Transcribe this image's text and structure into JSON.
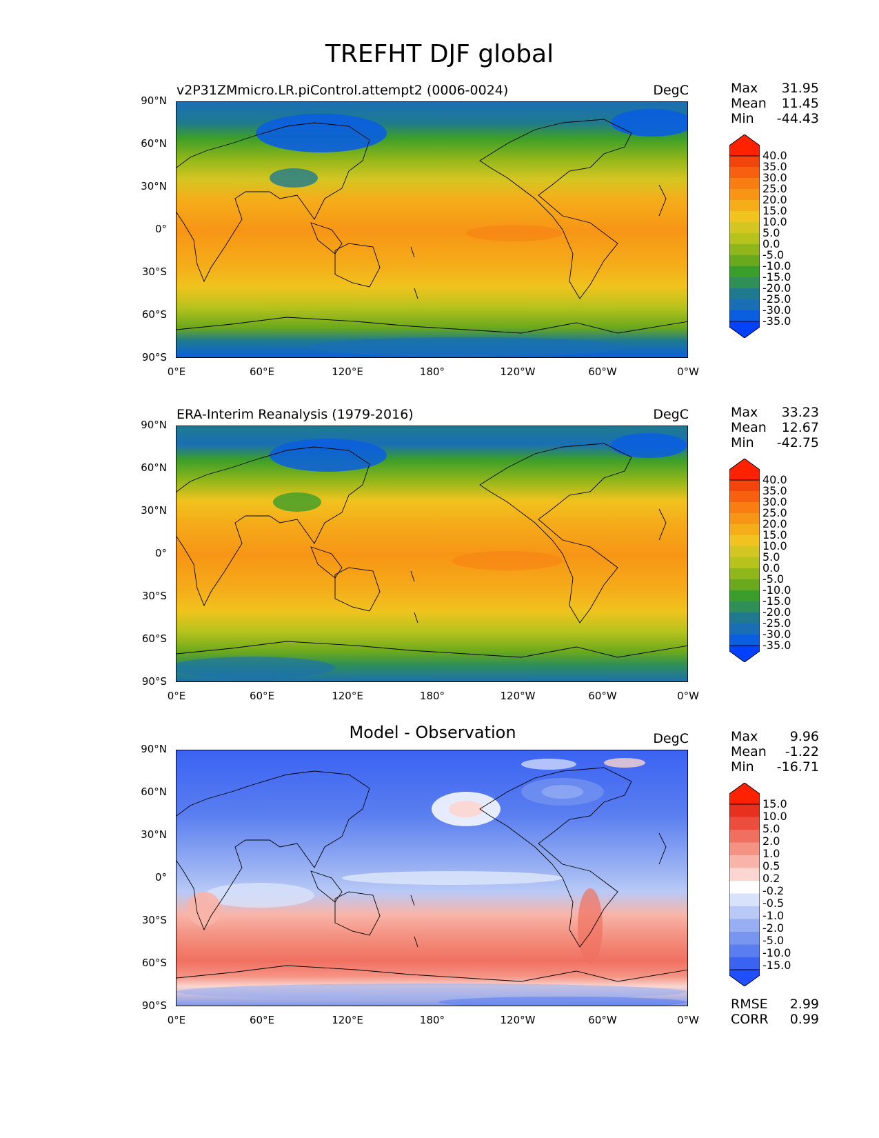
{
  "figure": {
    "title": "TREFHT DJF global"
  },
  "lat_labels": [
    "90°N",
    "60°N",
    "30°N",
    "0°",
    "30°S",
    "60°S",
    "90°S"
  ],
  "lon_labels": [
    "0°E",
    "60°E",
    "120°E",
    "180°",
    "120°W",
    "60°W",
    "0°W"
  ],
  "panels": [
    {
      "id": "test",
      "title": "v2P31ZMmicro.LR.piControl.attempt2 (0006-0024)",
      "units": "DegC",
      "stats": {
        "max_label": "Max",
        "max": "31.95",
        "mean_label": "Mean",
        "mean": "11.45",
        "min_label": "Min",
        "min": "-44.43"
      },
      "colorbar_labels": [
        "40.0",
        "35.0",
        "30.0",
        "25.0",
        "20.0",
        "15.0",
        "10.0",
        "5.0",
        "0.0",
        "-5.0",
        "-10.0",
        "-15.0",
        "-20.0",
        "-25.0",
        "-30.0",
        "-35.0"
      ]
    },
    {
      "id": "reference",
      "title": "ERA-Interim Reanalysis (1979-2016)",
      "units": "DegC",
      "stats": {
        "max_label": "Max",
        "max": "33.23",
        "mean_label": "Mean",
        "mean": "12.67",
        "min_label": "Min",
        "min": "-42.75"
      },
      "colorbar_labels": [
        "40.0",
        "35.0",
        "30.0",
        "25.0",
        "20.0",
        "15.0",
        "10.0",
        "5.0",
        "0.0",
        "-5.0",
        "-10.0",
        "-15.0",
        "-20.0",
        "-25.0",
        "-30.0",
        "-35.0"
      ]
    },
    {
      "id": "difference",
      "title": "Model - Observation",
      "units": "DegC",
      "stats": {
        "max_label": "Max",
        "max": "9.96",
        "mean_label": "Mean",
        "mean": "-1.22",
        "min_label": "Min",
        "min": "-16.71"
      },
      "colorbar_labels": [
        "15.0",
        "10.0",
        "5.0",
        "2.0",
        "1.0",
        "0.5",
        "0.2",
        "-0.2",
        "-0.5",
        "-1.0",
        "-2.0",
        "-5.0",
        "-10.0",
        "-15.0"
      ],
      "metrics": {
        "rmse_label": "RMSE",
        "rmse": "2.99",
        "corr_label": "CORR",
        "corr": "0.99"
      }
    }
  ],
  "colors": {
    "temperature_scale": [
      "#0040ff",
      "#0a5ee0",
      "#1a6fb4",
      "#1f7a8f",
      "#2f8f57",
      "#3c9e2a",
      "#6aa81d",
      "#8fb61a",
      "#b7c31d",
      "#d4c622",
      "#f0c31e",
      "#f5ad1a",
      "#f79516",
      "#f87d12",
      "#f6600e",
      "#f2450b",
      "#ff2200"
    ],
    "difference_scale": [
      "#1f4fff",
      "#3a63f2",
      "#5a7ef0",
      "#7896f0",
      "#97aff2",
      "#b8c9f6",
      "#d8e2fa",
      "#ffffff",
      "#fbd6d0",
      "#f8b4a8",
      "#f49383",
      "#f07060",
      "#ec4e3e",
      "#e8301f",
      "#ff2200"
    ]
  }
}
